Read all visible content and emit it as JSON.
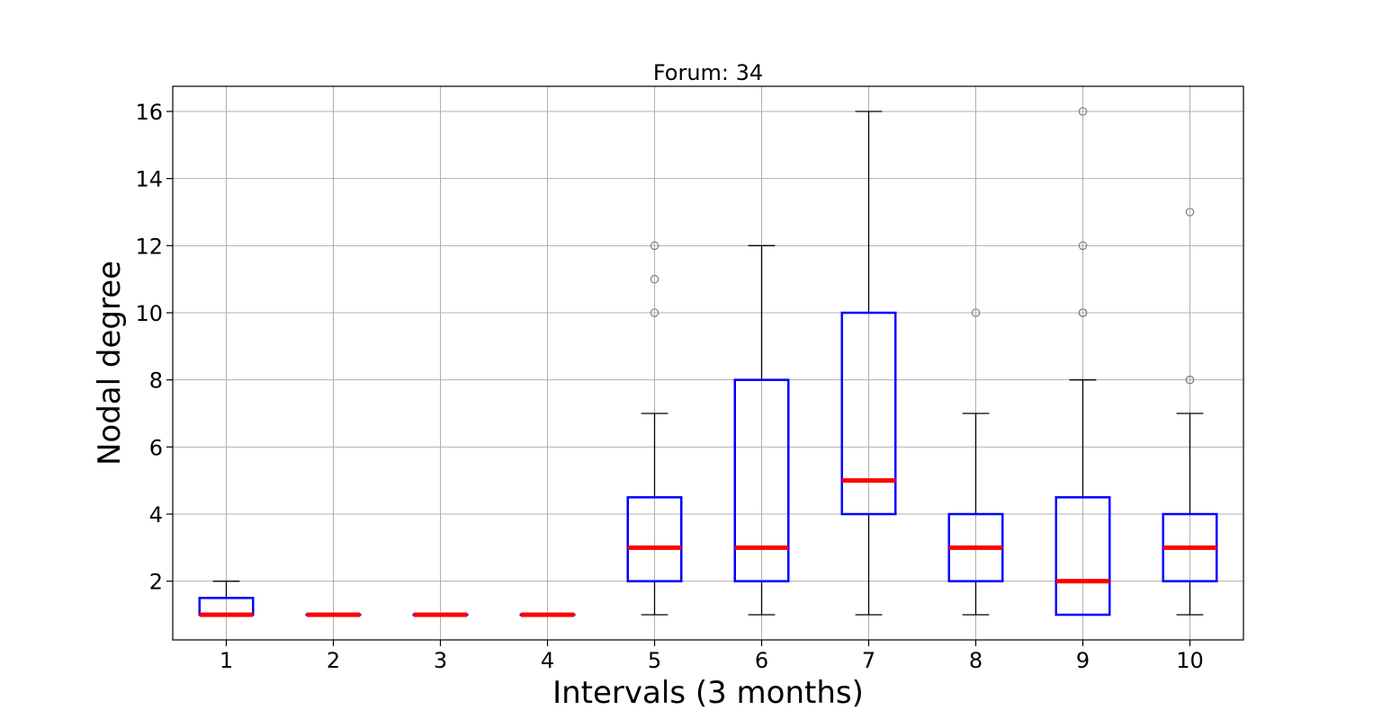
{
  "chart_data": {
    "type": "boxplot",
    "title": "Forum: 34",
    "xlabel": "Intervals (3 months)",
    "ylabel": "Nodal degree",
    "categories": [
      "1",
      "2",
      "3",
      "4",
      "5",
      "6",
      "7",
      "8",
      "9",
      "10"
    ],
    "ylim": [
      0.25,
      16.75
    ],
    "yticks": [
      2,
      4,
      6,
      8,
      10,
      12,
      14,
      16
    ],
    "grid": true,
    "box_color": "#0000ff",
    "median_color": "#ff0000",
    "whisker_color": "#000000",
    "flier_color": "#808080",
    "boxes": [
      {
        "category": "1",
        "whislo": 1,
        "q1": 1,
        "med": 1,
        "q3": 1.5,
        "whishi": 2,
        "fliers": []
      },
      {
        "category": "2",
        "whislo": 1,
        "q1": 1,
        "med": 1,
        "q3": 1,
        "whishi": 1,
        "fliers": []
      },
      {
        "category": "3",
        "whislo": 1,
        "q1": 1,
        "med": 1,
        "q3": 1,
        "whishi": 1,
        "fliers": []
      },
      {
        "category": "4",
        "whislo": 1,
        "q1": 1,
        "med": 1,
        "q3": 1,
        "whishi": 1,
        "fliers": []
      },
      {
        "category": "5",
        "whislo": 1,
        "q1": 2,
        "med": 3,
        "q3": 4.5,
        "whishi": 7,
        "fliers": [
          10,
          11,
          12
        ]
      },
      {
        "category": "6",
        "whislo": 1,
        "q1": 2,
        "med": 3,
        "q3": 8,
        "whishi": 12,
        "fliers": []
      },
      {
        "category": "7",
        "whislo": 1,
        "q1": 4,
        "med": 5,
        "q3": 10,
        "whishi": 16,
        "fliers": []
      },
      {
        "category": "8",
        "whislo": 1,
        "q1": 2,
        "med": 3,
        "q3": 4,
        "whishi": 7,
        "fliers": [
          10
        ]
      },
      {
        "category": "9",
        "whislo": 1,
        "q1": 1,
        "med": 2,
        "q3": 4.5,
        "whishi": 8,
        "fliers": [
          10,
          10,
          12,
          16
        ]
      },
      {
        "category": "10",
        "whislo": 1,
        "q1": 2,
        "med": 3,
        "q3": 4,
        "whishi": 7,
        "fliers": [
          8,
          8,
          13
        ]
      }
    ]
  }
}
